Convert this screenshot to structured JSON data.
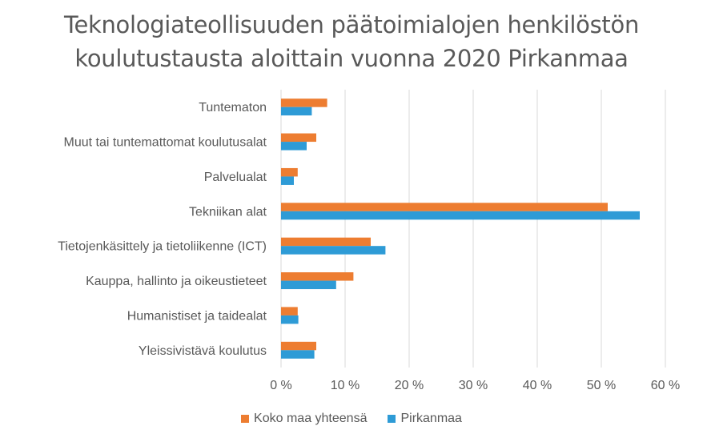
{
  "chart_data": {
    "type": "bar",
    "orientation": "horizontal",
    "title_line1": "Teknologiateollisuuden päätoimialojen henkilöstön",
    "title_line2": "koulutustausta aloittain vuonna 2020 Pirkanmaa",
    "categories": [
      "Tuntematon",
      "Muut tai tuntemattomat koulutusalat",
      "Palvelualat",
      "Tekniikan alat",
      "Tietojenkäsittely ja tietoliikenne (ICT)",
      "Kauppa, hallinto ja oikeustieteet",
      "Humanistiset ja taidealat",
      "Yleissivistävä koulutus"
    ],
    "series": [
      {
        "name": "Koko maa yhteensä",
        "color": "#ED7D31",
        "values": [
          7.2,
          5.5,
          2.6,
          51.0,
          14.0,
          11.3,
          2.6,
          5.5
        ]
      },
      {
        "name": "Pirkanmaa",
        "color": "#2E9BD6",
        "values": [
          4.8,
          4.0,
          2.0,
          56.0,
          16.3,
          8.6,
          2.7,
          5.2
        ]
      }
    ],
    "xlim": [
      0,
      60
    ],
    "xticks": [
      "0 %",
      "10 %",
      "20 %",
      "30 %",
      "40 %",
      "50 %",
      "60 %"
    ],
    "grid": true,
    "legend_position": "bottom"
  }
}
